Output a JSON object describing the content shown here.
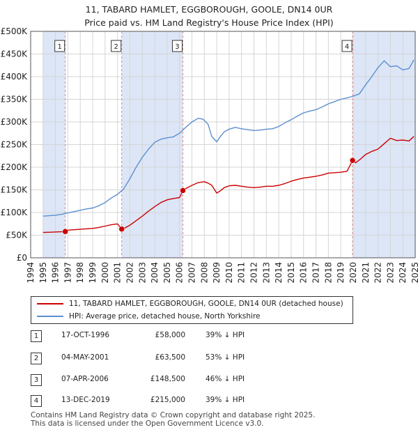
{
  "title_line1": "11, TABARD HAMLET, EGGBOROUGH, GOOLE, DN14 0UR",
  "title_line2": "Price paid vs. HM Land Registry's House Price Index (HPI)",
  "colors": {
    "property": "#cc0000",
    "hpi": "#5b8fd0",
    "shade": "#dce6f7",
    "grid": "#d5d5d5",
    "vline": "#e08080"
  },
  "chart_data": {
    "type": "line",
    "xlim": [
      1994.0,
      2025.0
    ],
    "ylim": [
      0,
      500000
    ],
    "y_ticks": [
      0,
      50000,
      100000,
      150000,
      200000,
      250000,
      300000,
      350000,
      400000,
      450000,
      500000
    ],
    "y_tick_labels": [
      "£0",
      "£50K",
      "£100K",
      "£150K",
      "£200K",
      "£250K",
      "£300K",
      "£350K",
      "£400K",
      "£450K",
      "£500K"
    ],
    "x_ticks": [
      1994,
      1995,
      1996,
      1997,
      1998,
      1999,
      2000,
      2001,
      2002,
      2003,
      2004,
      2005,
      2006,
      2007,
      2008,
      2009,
      2010,
      2011,
      2012,
      2013,
      2014,
      2015,
      2016,
      2017,
      2018,
      2019,
      2020,
      2021,
      2022,
      2023,
      2024,
      2025
    ],
    "x_tick_labels": [
      "1994",
      "1995",
      "1996",
      "1997",
      "1998",
      "1999",
      "2000",
      "2001",
      "2002",
      "2003",
      "2004",
      "2005",
      "2006",
      "2007",
      "2008",
      "2009",
      "2010",
      "2011",
      "2012",
      "2013",
      "2014",
      "2015",
      "2016",
      "2017",
      "2018",
      "2019",
      "2020",
      "2021",
      "2022",
      "2023",
      "2024",
      "2025"
    ],
    "series": [
      {
        "name": "11, TABARD HAMLET, EGGBOROUGH, GOOLE, DN14 0UR (detached house)",
        "x": [
          1995.0,
          1995.5,
          1996.0,
          1996.5,
          1996.79,
          1997.0,
          1997.5,
          1998.0,
          1998.5,
          1999.0,
          1999.5,
          2000.0,
          2000.5,
          2001.0,
          2001.34,
          2001.6,
          2002.0,
          2002.5,
          2003.0,
          2003.5,
          2004.0,
          2004.5,
          2005.0,
          2005.5,
          2006.0,
          2006.27,
          2006.5,
          2007.0,
          2007.5,
          2008.0,
          2008.3,
          2008.6,
          2009.0,
          2009.3,
          2009.6,
          2010.0,
          2010.5,
          2011.0,
          2011.5,
          2012.0,
          2012.5,
          2013.0,
          2013.5,
          2014.0,
          2014.5,
          2015.0,
          2015.5,
          2016.0,
          2016.5,
          2017.0,
          2017.5,
          2018.0,
          2018.5,
          2019.0,
          2019.5,
          2019.95,
          2020.2,
          2020.5,
          2021.0,
          2021.5,
          2022.0,
          2022.5,
          2023.0,
          2023.5,
          2024.0,
          2024.5,
          2024.9
        ],
        "y": [
          56000,
          56500,
          57000,
          57500,
          58000,
          61000,
          62000,
          63000,
          64000,
          65000,
          67000,
          70000,
          73000,
          75000,
          63500,
          66000,
          72000,
          82000,
          92000,
          103000,
          113000,
          122000,
          128000,
          131000,
          133000,
          148500,
          153000,
          160000,
          166000,
          168000,
          165000,
          160000,
          143000,
          148000,
          155000,
          159000,
          160000,
          158000,
          156000,
          155000,
          156000,
          158000,
          158000,
          160000,
          164000,
          169000,
          173000,
          176000,
          178000,
          180000,
          183000,
          187000,
          188000,
          189000,
          191000,
          215000,
          210000,
          216000,
          228000,
          235000,
          240000,
          252000,
          264000,
          259000,
          260000,
          258000,
          268000
        ]
      },
      {
        "name": "HPI: Average price, detached house, North Yorkshire",
        "x": [
          1995.0,
          1995.5,
          1996.0,
          1996.5,
          1997.0,
          1997.5,
          1998.0,
          1998.5,
          1999.0,
          1999.5,
          2000.0,
          2000.5,
          2001.0,
          2001.5,
          2002.0,
          2002.5,
          2003.0,
          2003.5,
          2004.0,
          2004.5,
          2005.0,
          2005.5,
          2006.0,
          2006.5,
          2007.0,
          2007.5,
          2007.9,
          2008.3,
          2008.6,
          2009.0,
          2009.3,
          2009.6,
          2010.0,
          2010.5,
          2011.0,
          2011.5,
          2012.0,
          2012.5,
          2013.0,
          2013.5,
          2014.0,
          2014.5,
          2015.0,
          2015.5,
          2016.0,
          2016.5,
          2017.0,
          2017.5,
          2018.0,
          2018.5,
          2019.0,
          2019.5,
          2020.0,
          2020.5,
          2021.0,
          2021.5,
          2022.0,
          2022.5,
          2023.0,
          2023.5,
          2024.0,
          2024.5,
          2024.9
        ],
        "y": [
          92000,
          93000,
          94000,
          96000,
          99000,
          102000,
          105000,
          108000,
          110000,
          115000,
          122000,
          132000,
          140000,
          152000,
          175000,
          200000,
          222000,
          240000,
          255000,
          262000,
          265000,
          267000,
          275000,
          288000,
          300000,
          308000,
          306000,
          295000,
          268000,
          256000,
          268000,
          278000,
          284000,
          288000,
          285000,
          283000,
          281000,
          282000,
          284000,
          285000,
          290000,
          298000,
          305000,
          313000,
          320000,
          324000,
          327000,
          333000,
          340000,
          345000,
          350000,
          353000,
          357000,
          362000,
          382000,
          400000,
          420000,
          435000,
          422000,
          424000,
          415000,
          418000,
          437000
        ]
      }
    ],
    "markers": [
      {
        "label": "1",
        "x": 1996.79,
        "y": 58000
      },
      {
        "label": "2",
        "x": 2001.34,
        "y": 63500
      },
      {
        "label": "3",
        "x": 2006.27,
        "y": 148500
      },
      {
        "label": "4",
        "x": 2019.95,
        "y": 215000
      }
    ],
    "shaded_ranges": [
      [
        1995.0,
        1996.79
      ],
      [
        2001.34,
        2006.27
      ],
      [
        2019.95,
        2025.0
      ]
    ]
  },
  "legend": {
    "property_label": "11, TABARD HAMLET, EGGBOROUGH, GOOLE, DN14 0UR (detached house)",
    "hpi_label": "HPI: Average price, detached house, North Yorkshire"
  },
  "transactions": [
    {
      "num": "1",
      "date": "17-OCT-1996",
      "price": "£58,000",
      "hpi": "39% ↓ HPI"
    },
    {
      "num": "2",
      "date": "04-MAY-2001",
      "price": "£63,500",
      "hpi": "53% ↓ HPI"
    },
    {
      "num": "3",
      "date": "07-APR-2006",
      "price": "£148,500",
      "hpi": "46% ↓ HPI"
    },
    {
      "num": "4",
      "date": "13-DEC-2019",
      "price": "£215,000",
      "hpi": "39% ↓ HPI"
    }
  ],
  "footer_line1": "Contains HM Land Registry data © Crown copyright and database right 2025.",
  "footer_line2": "This data is licensed under the Open Government Licence v3.0."
}
